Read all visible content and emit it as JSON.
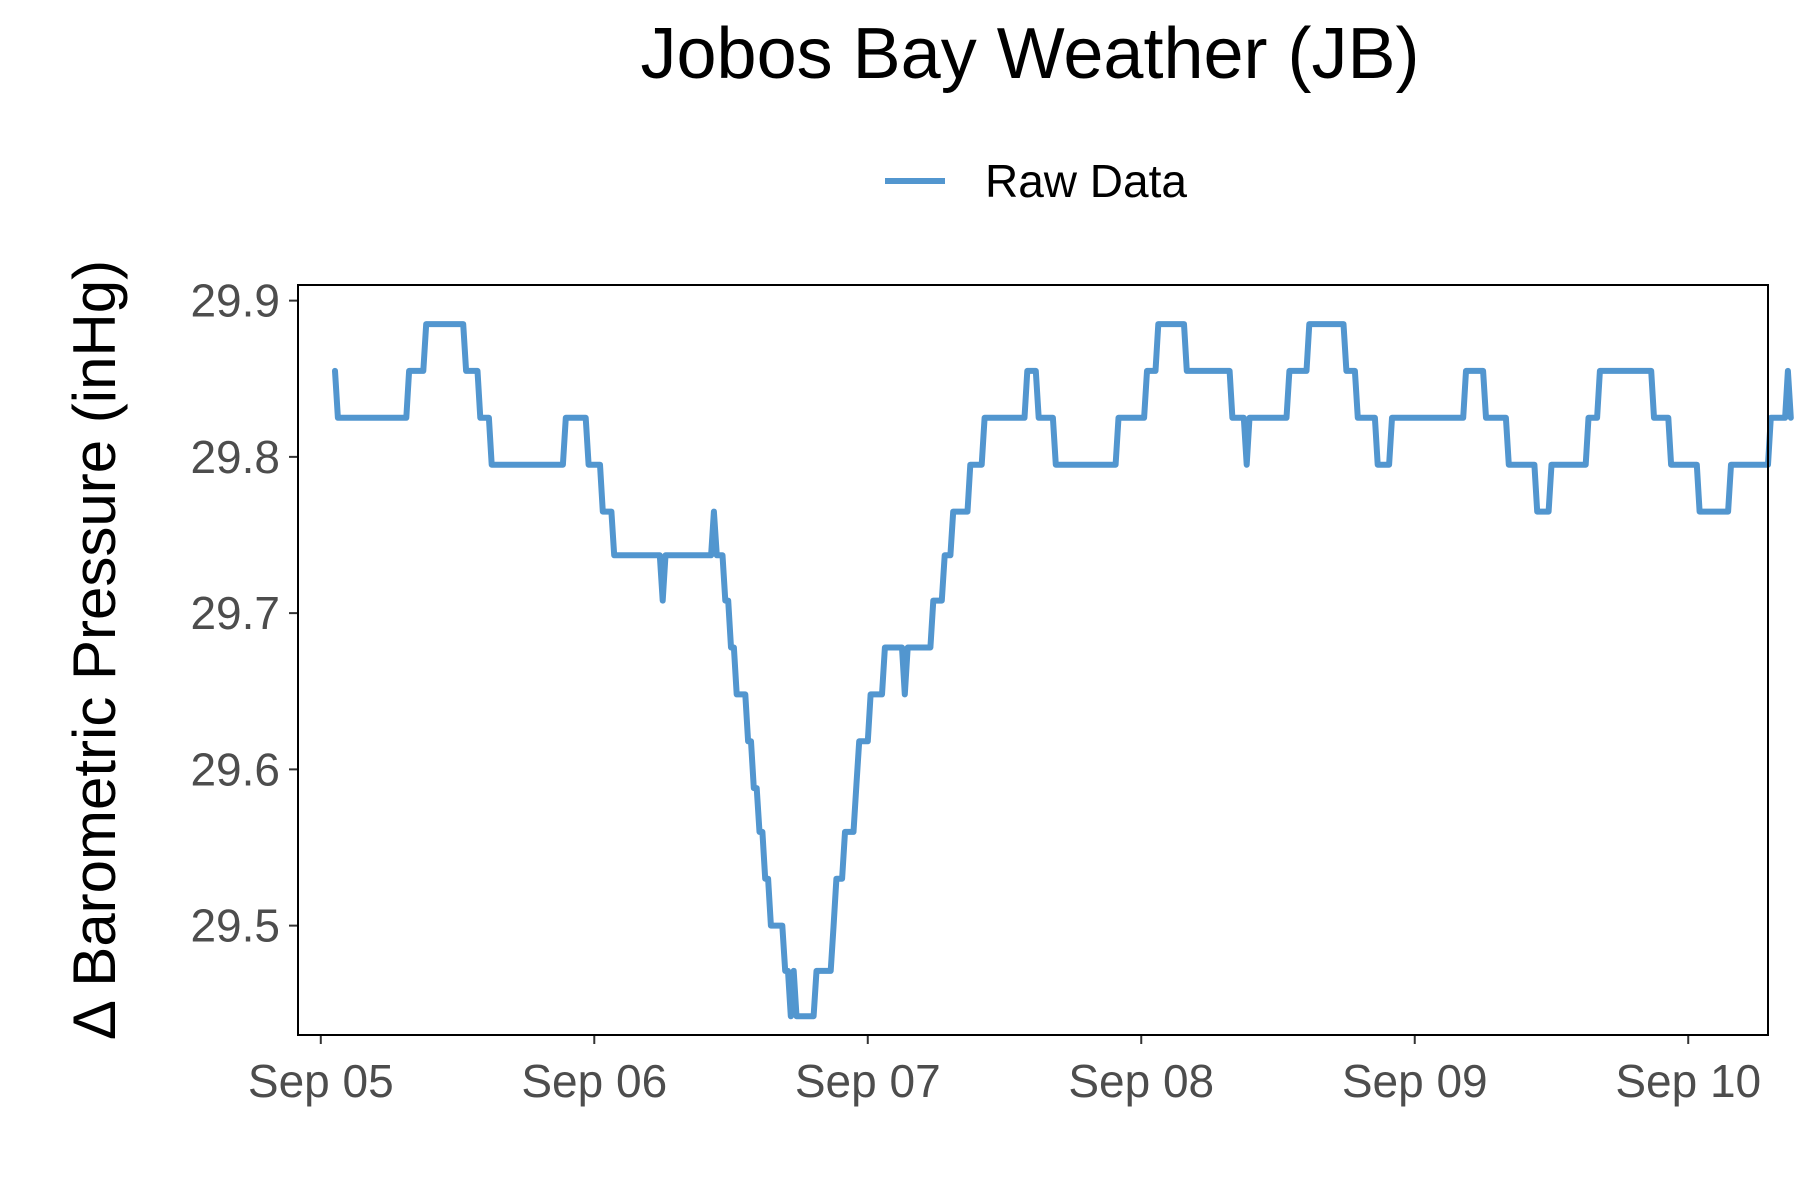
{
  "chart_data": {
    "type": "line",
    "title": "Jobos Bay Weather (JB)",
    "xlabel": "",
    "ylabel": "Δ Barometric Pressure (inHg)",
    "legend": {
      "position": "top",
      "entries": [
        "Raw Data"
      ]
    },
    "grid": false,
    "x_unit": "date (September)",
    "xlim": [
      "Sep 04 22:00",
      "Sep 10 07:00"
    ],
    "ylim": [
      29.43,
      29.91
    ],
    "x_ticks": [
      {
        "label": "Sep 05",
        "value": "Sep 05 00:00"
      },
      {
        "label": "Sep 06",
        "value": "Sep 06 00:00"
      },
      {
        "label": "Sep 07",
        "value": "Sep 07 00:00"
      },
      {
        "label": "Sep 08",
        "value": "Sep 08 00:00"
      },
      {
        "label": "Sep 09",
        "value": "Sep 09 00:00"
      },
      {
        "label": "Sep 10",
        "value": "Sep 10 00:00"
      }
    ],
    "y_ticks": [
      {
        "label": "29.5",
        "value": 29.5
      },
      {
        "label": "29.6",
        "value": 29.6
      },
      {
        "label": "29.7",
        "value": 29.7
      },
      {
        "label": "29.8",
        "value": 29.8
      },
      {
        "label": "29.9",
        "value": 29.9
      }
    ],
    "series": [
      {
        "name": "Raw Data",
        "color": "#5296cf",
        "points": [
          [
            "Sep 05 01:15",
            29.855
          ],
          [
            "Sep 05 01:30",
            29.825
          ],
          [
            "Sep 05 07:30",
            29.825
          ],
          [
            "Sep 05 07:45",
            29.855
          ],
          [
            "Sep 05 09:00",
            29.855
          ],
          [
            "Sep 05 09:15",
            29.885
          ],
          [
            "Sep 05 12:30",
            29.885
          ],
          [
            "Sep 05 12:45",
            29.855
          ],
          [
            "Sep 05 13:45",
            29.855
          ],
          [
            "Sep 05 14:00",
            29.825
          ],
          [
            "Sep 05 14:45",
            29.825
          ],
          [
            "Sep 05 15:00",
            29.795
          ],
          [
            "Sep 05 21:15",
            29.795
          ],
          [
            "Sep 05 21:30",
            29.825
          ],
          [
            "Sep 05 23:15",
            29.825
          ],
          [
            "Sep 05 23:30",
            29.795
          ],
          [
            "Sep 06 00:30",
            29.795
          ],
          [
            "Sep 06 00:45",
            29.765
          ],
          [
            "Sep 06 01:30",
            29.765
          ],
          [
            "Sep 06 01:45",
            29.737
          ],
          [
            "Sep 06 05:45",
            29.737
          ],
          [
            "Sep 06 06:00",
            29.708
          ],
          [
            "Sep 06 06:15",
            29.737
          ],
          [
            "Sep 06 10:15",
            29.737
          ],
          [
            "Sep 06 10:30",
            29.765
          ],
          [
            "Sep 06 10:45",
            29.737
          ],
          [
            "Sep 06 11:15",
            29.737
          ],
          [
            "Sep 06 11:30",
            29.708
          ],
          [
            "Sep 06 11:45",
            29.708
          ],
          [
            "Sep 06 12:00",
            29.678
          ],
          [
            "Sep 06 12:15",
            29.678
          ],
          [
            "Sep 06 12:30",
            29.648
          ],
          [
            "Sep 06 13:15",
            29.648
          ],
          [
            "Sep 06 13:30",
            29.618
          ],
          [
            "Sep 06 13:45",
            29.618
          ],
          [
            "Sep 06 14:00",
            29.588
          ],
          [
            "Sep 06 14:15",
            29.588
          ],
          [
            "Sep 06 14:30",
            29.56
          ],
          [
            "Sep 06 14:45",
            29.56
          ],
          [
            "Sep 06 15:00",
            29.53
          ],
          [
            "Sep 06 15:15",
            29.53
          ],
          [
            "Sep 06 15:30",
            29.5
          ],
          [
            "Sep 06 16:30",
            29.5
          ],
          [
            "Sep 06 16:45",
            29.471
          ],
          [
            "Sep 06 17:00",
            29.471
          ],
          [
            "Sep 06 17:15",
            29.442
          ],
          [
            "Sep 06 17:30",
            29.471
          ],
          [
            "Sep 06 17:45",
            29.442
          ],
          [
            "Sep 06 19:15",
            29.442
          ],
          [
            "Sep 06 19:30",
            29.471
          ],
          [
            "Sep 06 20:45",
            29.471
          ],
          [
            "Sep 06 21:00",
            29.5
          ],
          [
            "Sep 06 21:15",
            29.53
          ],
          [
            "Sep 06 21:45",
            29.53
          ],
          [
            "Sep 06 22:00",
            29.56
          ],
          [
            "Sep 06 22:45",
            29.56
          ],
          [
            "Sep 06 23:00",
            29.59
          ],
          [
            "Sep 06 23:15",
            29.618
          ],
          [
            "Sep 07 00:00",
            29.618
          ],
          [
            "Sep 07 00:15",
            29.648
          ],
          [
            "Sep 07 01:15",
            29.648
          ],
          [
            "Sep 07 01:30",
            29.678
          ],
          [
            "Sep 07 03:00",
            29.678
          ],
          [
            "Sep 07 03:15",
            29.648
          ],
          [
            "Sep 07 03:30",
            29.678
          ],
          [
            "Sep 07 05:30",
            29.678
          ],
          [
            "Sep 07 05:45",
            29.708
          ],
          [
            "Sep 07 06:30",
            29.708
          ],
          [
            "Sep 07 06:45",
            29.737
          ],
          [
            "Sep 07 07:15",
            29.737
          ],
          [
            "Sep 07 07:30",
            29.765
          ],
          [
            "Sep 07 08:45",
            29.765
          ],
          [
            "Sep 07 09:00",
            29.795
          ],
          [
            "Sep 07 10:00",
            29.795
          ],
          [
            "Sep 07 10:15",
            29.825
          ],
          [
            "Sep 07 13:45",
            29.825
          ],
          [
            "Sep 07 14:00",
            29.855
          ],
          [
            "Sep 07 14:45",
            29.855
          ],
          [
            "Sep 07 15:00",
            29.825
          ],
          [
            "Sep 07 16:15",
            29.825
          ],
          [
            "Sep 07 16:30",
            29.795
          ],
          [
            "Sep 07 21:45",
            29.795
          ],
          [
            "Sep 07 22:00",
            29.825
          ],
          [
            "Sep 08 00:15",
            29.825
          ],
          [
            "Sep 08 00:30",
            29.855
          ],
          [
            "Sep 08 01:15",
            29.855
          ],
          [
            "Sep 08 01:30",
            29.885
          ],
          [
            "Sep 08 03:45",
            29.885
          ],
          [
            "Sep 08 04:00",
            29.855
          ],
          [
            "Sep 08 07:45",
            29.855
          ],
          [
            "Sep 08 08:00",
            29.825
          ],
          [
            "Sep 08 09:00",
            29.825
          ],
          [
            "Sep 08 09:15",
            29.795
          ],
          [
            "Sep 08 09:30",
            29.825
          ],
          [
            "Sep 08 12:45",
            29.825
          ],
          [
            "Sep 08 13:00",
            29.855
          ],
          [
            "Sep 08 14:30",
            29.855
          ],
          [
            "Sep 08 14:45",
            29.885
          ],
          [
            "Sep 08 17:45",
            29.885
          ],
          [
            "Sep 08 18:00",
            29.855
          ],
          [
            "Sep 08 18:45",
            29.855
          ],
          [
            "Sep 08 19:00",
            29.825
          ],
          [
            "Sep 08 20:30",
            29.825
          ],
          [
            "Sep 08 20:45",
            29.795
          ],
          [
            "Sep 08 21:45",
            29.795
          ],
          [
            "Sep 08 22:00",
            29.825
          ],
          [
            "Sep 09 04:15",
            29.825
          ],
          [
            "Sep 09 04:30",
            29.855
          ],
          [
            "Sep 09 06:00",
            29.855
          ],
          [
            "Sep 09 06:15",
            29.825
          ],
          [
            "Sep 09 08:00",
            29.825
          ],
          [
            "Sep 09 08:15",
            29.795
          ],
          [
            "Sep 09 10:30",
            29.795
          ],
          [
            "Sep 09 10:45",
            29.765
          ],
          [
            "Sep 09 11:45",
            29.765
          ],
          [
            "Sep 09 12:00",
            29.795
          ],
          [
            "Sep 09 15:00",
            29.795
          ],
          [
            "Sep 09 15:15",
            29.825
          ],
          [
            "Sep 09 16:00",
            29.825
          ],
          [
            "Sep 09 16:15",
            29.855
          ],
          [
            "Sep 09 20:45",
            29.855
          ],
          [
            "Sep 09 21:00",
            29.825
          ],
          [
            "Sep 09 22:15",
            29.825
          ],
          [
            "Sep 09 22:30",
            29.795
          ],
          [
            "Sep 10 00:45",
            29.795
          ],
          [
            "Sep 10 01:00",
            29.765
          ],
          [
            "Sep 10 03:30",
            29.765
          ],
          [
            "Sep 10 03:45",
            29.795
          ],
          [
            "Sep 10 07:00",
            29.795
          ],
          [
            "Sep 10 07:15",
            29.825
          ],
          [
            "Sep 10 08:30",
            29.825
          ],
          [
            "Sep 10 08:45",
            29.855
          ],
          [
            "Sep 10 09:00",
            29.825
          ]
        ]
      }
    ]
  }
}
